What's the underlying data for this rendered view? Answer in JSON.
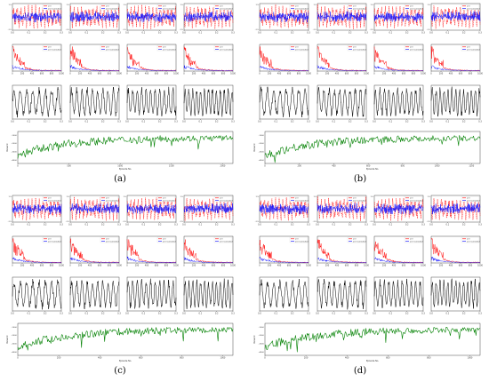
{
  "chart_data": [
    {
      "type": "composite",
      "panel": "(a)",
      "legend_labels": [
        "a(t)",
        "a(t) Controlled"
      ],
      "series_colors": {
        "uncontrolled": "#ff0000",
        "controlled": "#0000ff",
        "action": "#000000",
        "reward": "#008000"
      },
      "row1_ylim": [
        -1.5,
        1.5
      ],
      "row1_xticks": [
        "0.0",
        "0.1",
        "0.2",
        "0.3"
      ],
      "row2_xticks": [
        "0",
        "200",
        "400",
        "600",
        "800",
        "1000"
      ],
      "row3_xticks": [
        "0.0",
        "0.1",
        "0.2",
        "0.3"
      ],
      "reward_xticks": [
        "0",
        "500",
        "1000",
        "1500",
        "2000"
      ],
      "reward_yticks": [
        "-1000",
        "-2000",
        "-3000",
        "-4000"
      ],
      "reward_xlabel": "Episode No.",
      "reward_ylabel": "Reward",
      "reward_episodes": 2100
    },
    {
      "type": "composite",
      "panel": "(b)",
      "legend_labels": [
        "a(t)",
        "a(t) Controlled"
      ],
      "series_colors": {
        "uncontrolled": "#ff0000",
        "controlled": "#0000ff",
        "action": "#000000",
        "reward": "#008000"
      },
      "row1_ylim": [
        -1.5,
        1.5
      ],
      "row1_xticks": [
        "0.0",
        "0.1",
        "0.2",
        "0.3"
      ],
      "row2_xticks": [
        "0",
        "200",
        "400",
        "600",
        "800",
        "1000"
      ],
      "row3_xticks": [
        "0.0",
        "0.1",
        "0.2",
        "0.3"
      ],
      "reward_xticks": [
        "0",
        "200",
        "400",
        "600",
        "800",
        "1000",
        "1200"
      ],
      "reward_yticks": [
        "-1000",
        "-2000",
        "-3000",
        "-4000"
      ],
      "reward_xlabel": "Episode No.",
      "reward_ylabel": "Reward",
      "reward_episodes": 1250
    },
    {
      "type": "composite",
      "panel": "(c)",
      "legend_labels": [
        "a(t)",
        "a(t) Controlled"
      ],
      "series_colors": {
        "uncontrolled": "#ff0000",
        "controlled": "#0000ff",
        "action": "#000000",
        "reward": "#008000"
      },
      "row1_ylim": [
        -1.5,
        1.5
      ],
      "row1_xticks": [
        "0.0",
        "0.1",
        "0.2",
        "0.3"
      ],
      "row2_xticks": [
        "0",
        "200",
        "400",
        "600",
        "800",
        "1000"
      ],
      "row3_xticks": [
        "0.0",
        "0.1",
        "0.2",
        "0.3"
      ],
      "reward_xticks": [
        "0",
        "200",
        "400",
        "600",
        "800",
        "1000"
      ],
      "reward_yticks": [
        "-1000",
        "-2000",
        "-3000",
        "-4000"
      ],
      "reward_xlabel": "Episode No.",
      "reward_ylabel": "Reward",
      "reward_episodes": 1050
    },
    {
      "type": "composite",
      "panel": "(d)",
      "legend_labels": [
        "a(t)",
        "a(t) Controlled"
      ],
      "series_colors": {
        "uncontrolled": "#ff0000",
        "controlled": "#0000ff",
        "action": "#000000",
        "reward": "#008000"
      },
      "row1_ylim": [
        -1.5,
        1.5
      ],
      "row1_xticks": [
        "0.0",
        "0.1",
        "0.2",
        "0.3"
      ],
      "row2_xticks": [
        "0",
        "200",
        "400",
        "600",
        "800",
        "1000"
      ],
      "row3_xticks": [
        "0.0",
        "0.1",
        "0.2",
        "0.3"
      ],
      "reward_xticks": [
        "0",
        "200",
        "400",
        "600",
        "800",
        "1000"
      ],
      "reward_yticks": [
        "-1000",
        "-2000",
        "-3000",
        "-4000"
      ],
      "reward_xlabel": "Episode No.",
      "reward_ylabel": "Reward",
      "reward_episodes": 1050
    }
  ]
}
